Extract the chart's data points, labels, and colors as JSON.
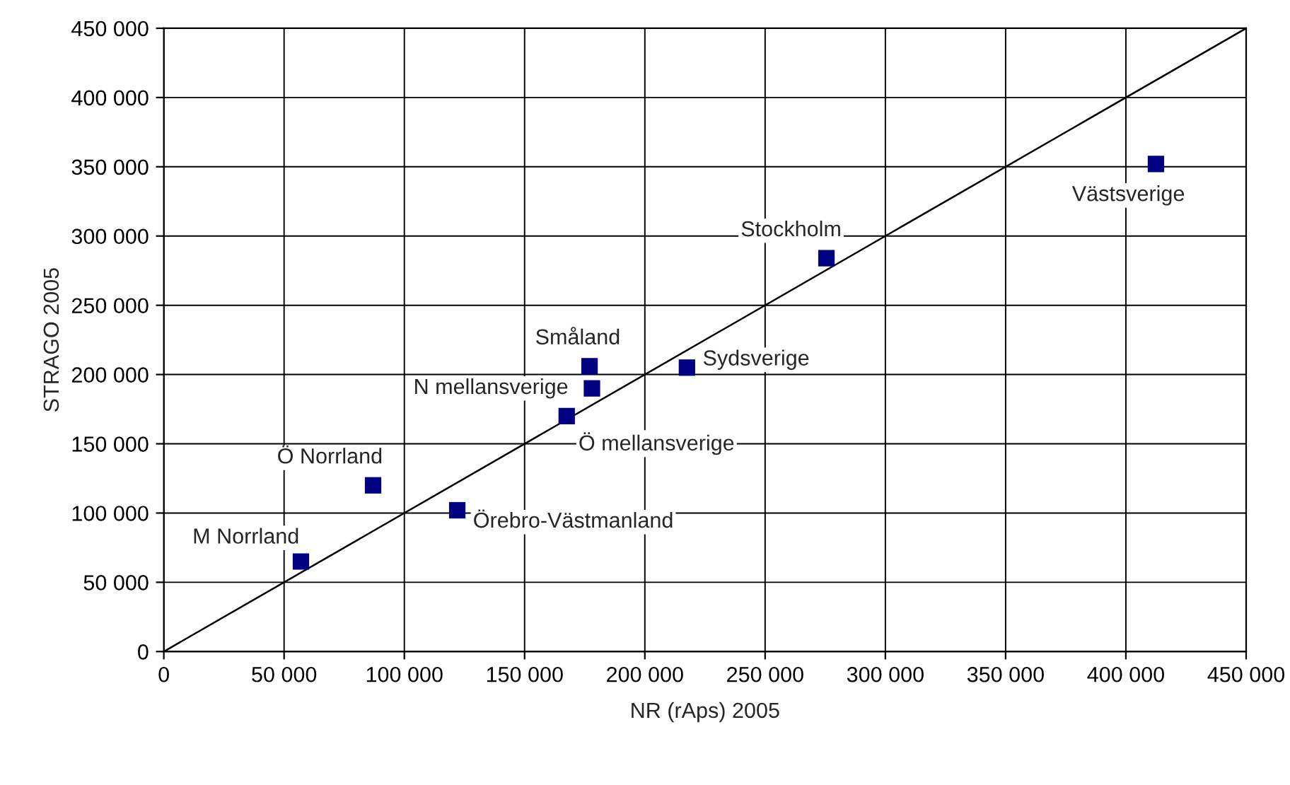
{
  "chart_data": {
    "type": "scatter",
    "xlabel": "NR (rAps) 2005",
    "ylabel": "STRAGO 2005",
    "xlim": [
      0,
      450000
    ],
    "ylim": [
      0,
      450000
    ],
    "xticks": [
      {
        "value": 0,
        "label": "0"
      },
      {
        "value": 50000,
        "label": "50 000"
      },
      {
        "value": 100000,
        "label": "100 000"
      },
      {
        "value": 150000,
        "label": "150 000"
      },
      {
        "value": 200000,
        "label": "200 000"
      },
      {
        "value": 250000,
        "label": "250 000"
      },
      {
        "value": 300000,
        "label": "300 000"
      },
      {
        "value": 350000,
        "label": "350 000"
      },
      {
        "value": 400000,
        "label": "400 000"
      },
      {
        "value": 450000,
        "label": "450 000"
      }
    ],
    "yticks": [
      {
        "value": 0,
        "label": "0"
      },
      {
        "value": 50000,
        "label": "50 000"
      },
      {
        "value": 100000,
        "label": "100 000"
      },
      {
        "value": 150000,
        "label": "150 000"
      },
      {
        "value": 200000,
        "label": "200 000"
      },
      {
        "value": 250000,
        "label": "250 000"
      },
      {
        "value": 300000,
        "label": "300 000"
      },
      {
        "value": 350000,
        "label": "350 000"
      },
      {
        "value": 400000,
        "label": "400 000"
      },
      {
        "value": 450000,
        "label": "450 000"
      }
    ],
    "grid": true,
    "marker": "square",
    "series": [
      {
        "color": "#000080",
        "x": [
          57000,
          87000,
          122000,
          167500,
          177000,
          178000,
          217500,
          275500,
          412500
        ],
        "values": [
          65000,
          120000,
          102000,
          170000,
          206000,
          190000,
          205000,
          284000,
          352000
        ]
      },
      {
        "type": "line",
        "color": "#000000",
        "marker": "none",
        "x": [
          0,
          450000
        ],
        "values": [
          0,
          450000
        ]
      }
    ],
    "annotations": [
      {
        "text": "M Norrland",
        "x": 57000,
        "y": 65000
      },
      {
        "text": "Ö Norrland",
        "x": 87000,
        "y": 120000
      },
      {
        "text": "Örebro-Västmanland",
        "x": 122000,
        "y": 102000
      },
      {
        "text": "Ö mellansverige",
        "x": 167500,
        "y": 170000
      },
      {
        "text": "Småland",
        "x": 177000,
        "y": 206000
      },
      {
        "text": "N mellansverige",
        "x": 178000,
        "y": 190000
      },
      {
        "text": "Sydsverige",
        "x": 217500,
        "y": 205000
      },
      {
        "text": "Stockholm",
        "x": 275500,
        "y": 284000
      },
      {
        "text": "Västsverige",
        "x": 412500,
        "y": 352000
      }
    ]
  }
}
